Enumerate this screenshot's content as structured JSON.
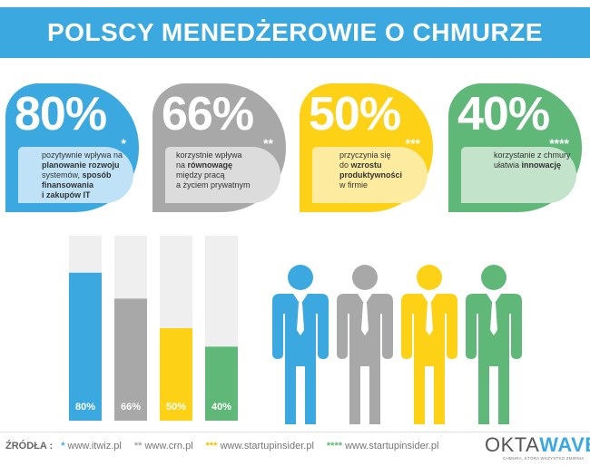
{
  "title": "POLSCY MENEDŻEROWIE O CHMURZE",
  "colors": {
    "blue": "#3ba9e0",
    "grey": "#a8a8a8",
    "yellow": "#fcd116",
    "green": "#5fb877",
    "bar_bg": "#efefef"
  },
  "cards": [
    {
      "percent": "80%",
      "stars": "*",
      "desc_lines": [
        "pozytywnie wpływa na",
        "planowanie rozwoju",
        "systemów, sposób",
        "finansowania",
        "i zakupów IT"
      ],
      "color": "#3ba9e0",
      "inner_color": "#bfe2f6"
    },
    {
      "percent": "66%",
      "stars": "**",
      "desc_lines": [
        "korzystnie wpływa",
        "na równowagę",
        "między pracą",
        "a życiem prywatnym"
      ],
      "color": "#a8a8a8",
      "inner_color": "#dcdcdc"
    },
    {
      "percent": "50%",
      "stars": "***",
      "desc_lines": [
        "przyczynia się",
        "do wzrostu",
        "produktywności",
        "w firmie"
      ],
      "color": "#fcd116",
      "inner_color": "#fdeca0"
    },
    {
      "percent": "40%",
      "stars": "****",
      "desc_lines": [
        "korzystanie z chmury",
        "ułatwia innowację"
      ],
      "color": "#5fb877",
      "inner_color": "#c3e3cb"
    }
  ],
  "chart_data": {
    "type": "bar",
    "categories": [
      "80%",
      "66%",
      "50%",
      "40%"
    ],
    "values": [
      80,
      66,
      50,
      40
    ],
    "ylim": [
      0,
      100
    ],
    "colors": [
      "#3ba9e0",
      "#a8a8a8",
      "#fcd116",
      "#5fb877"
    ],
    "labels": [
      "80%",
      "66%",
      "50%",
      "40%"
    ]
  },
  "people_colors": [
    "#3ba9e0",
    "#a8a8a8",
    "#fcd116",
    "#5fb877"
  ],
  "footer": {
    "sources_label": "ŹRÓDŁA :",
    "sources": [
      {
        "stars": "*",
        "url": "www.itwiz.pl",
        "color": "#3ba9e0"
      },
      {
        "stars": "**",
        "url": "www.crn.pl",
        "color": "#a8a8a8"
      },
      {
        "stars": "***",
        "url": "www.startupinsider.pl",
        "color": "#f2c200"
      },
      {
        "stars": "****",
        "url": "www.startupinsider.pl",
        "color": "#5fb877"
      }
    ],
    "logo_okta": "OKTA",
    "logo_wave": "WAVE",
    "logo_tagline": "CHMURA, KTÓRA WSZYSTKO ZMIENIA"
  }
}
